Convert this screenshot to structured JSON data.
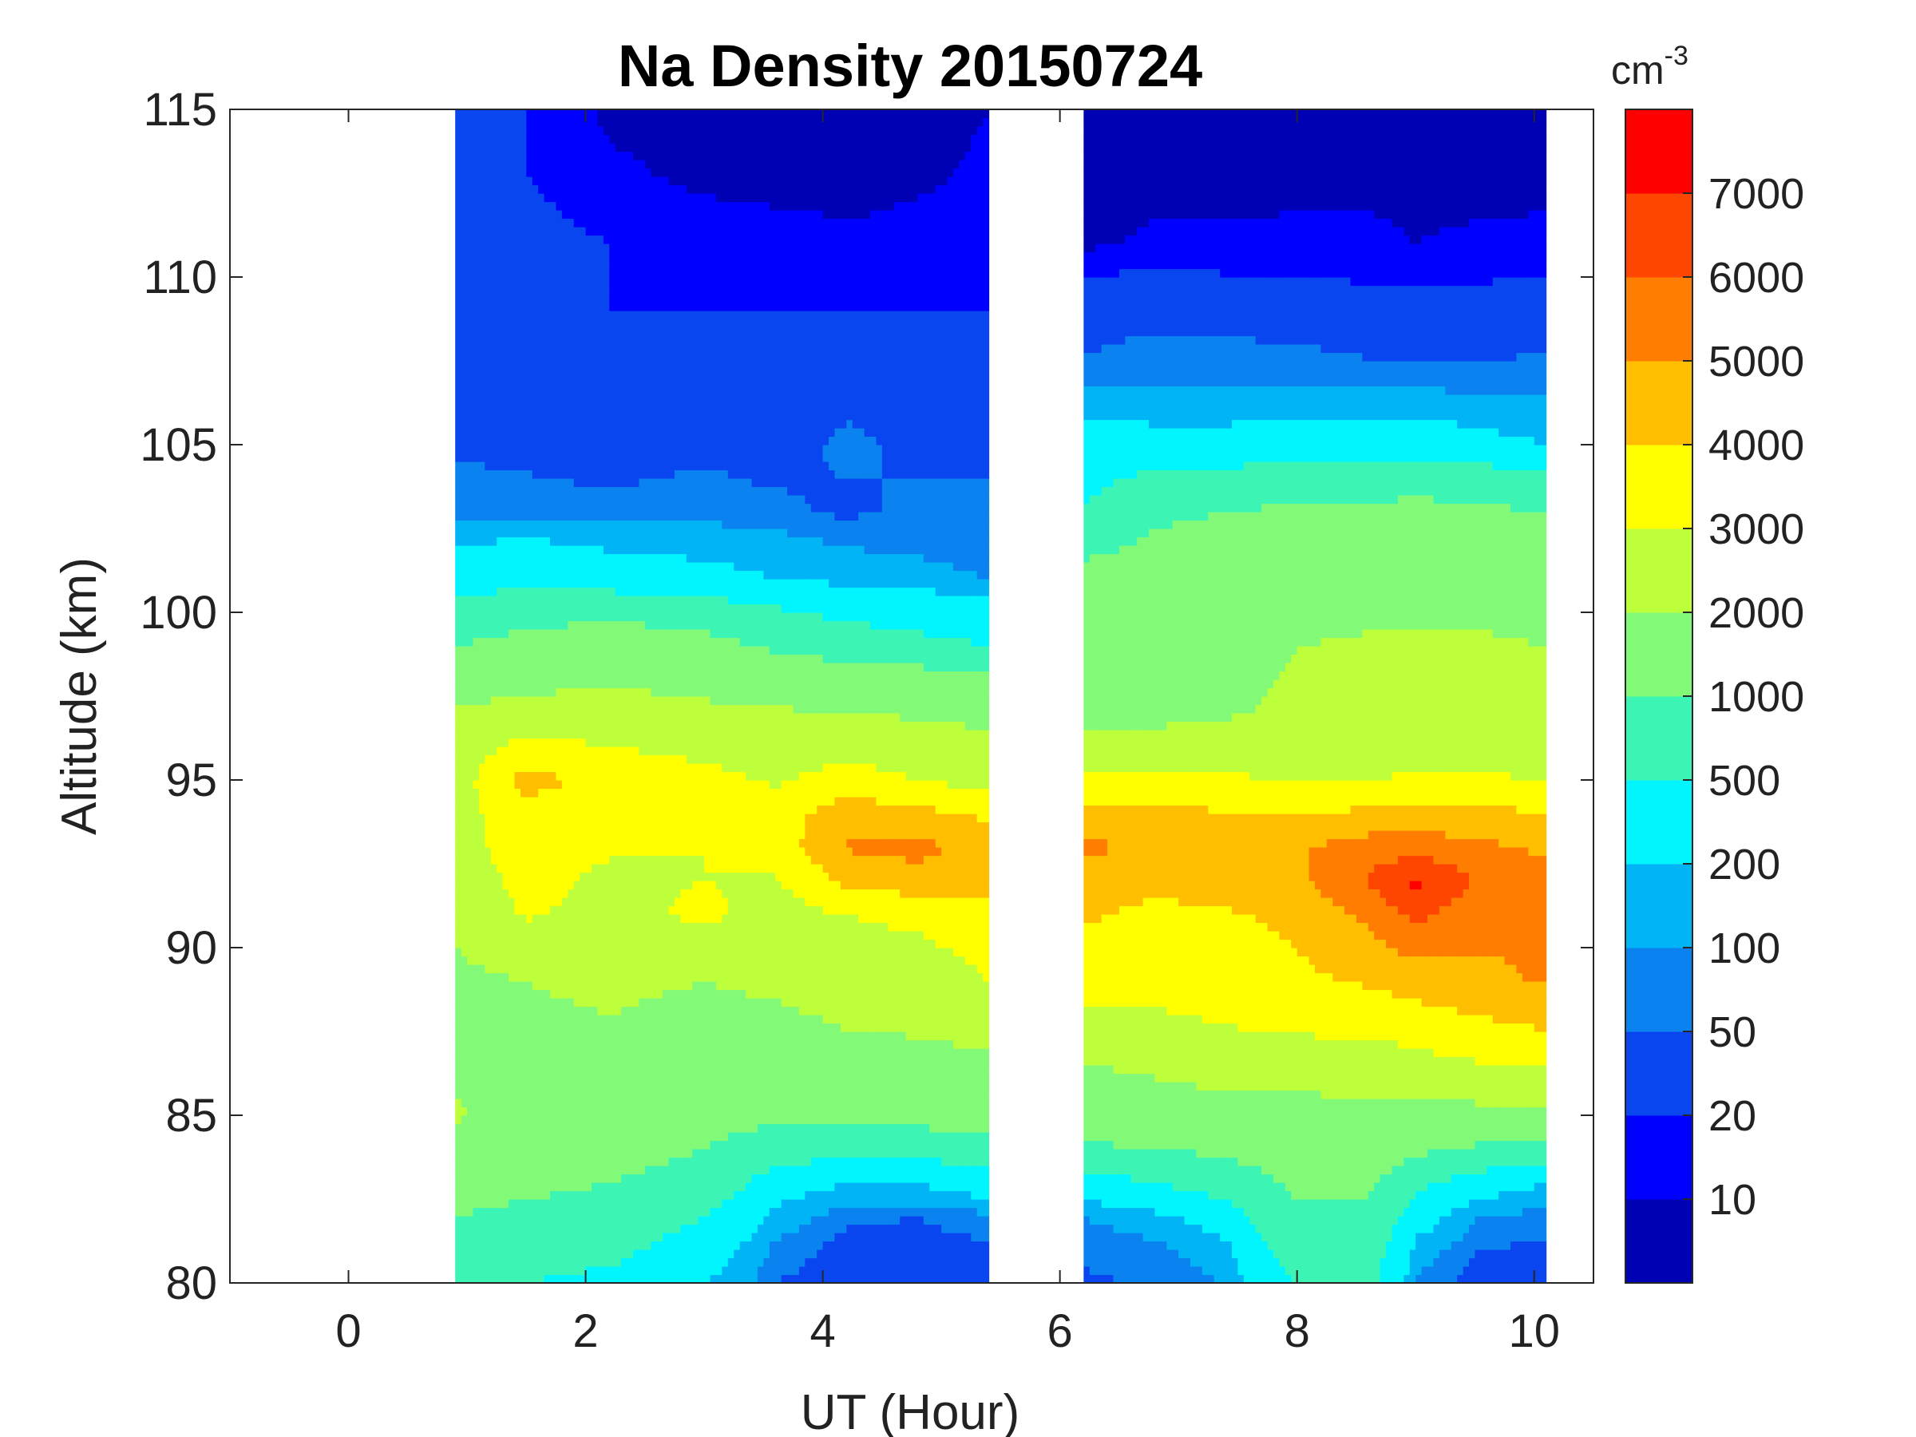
{
  "chart_data": {
    "type": "heatmap",
    "subtype": "filled-contour",
    "title": "Na Density 20150724",
    "xlabel": "UT (Hour)",
    "ylabel": "Altitude (km)",
    "xlim": [
      -1,
      10.5
    ],
    "ylim": [
      80,
      115
    ],
    "xticks": [
      "0",
      "2",
      "4",
      "6",
      "8",
      "10"
    ],
    "yticks": [
      "80",
      "85",
      "90",
      "95",
      "100",
      "105",
      "110",
      "115"
    ],
    "data_segments": [
      {
        "ut_start": 0.9,
        "ut_end": 5.4
      },
      {
        "ut_start": 6.2,
        "ut_end": 10.1
      }
    ],
    "colorbar": {
      "unit_base": "cm",
      "unit_exponent": "-3",
      "levels": [
        "10",
        "20",
        "50",
        "100",
        "200",
        "500",
        "1000",
        "2000",
        "3000",
        "4000",
        "5000",
        "6000",
        "7000"
      ],
      "level_values": [
        10,
        20,
        50,
        100,
        200,
        500,
        1000,
        2000,
        3000,
        4000,
        5000,
        6000,
        7000
      ],
      "colors": [
        "#0000b4",
        "#0000ff",
        "#0a46f0",
        "#0a82f0",
        "#00b4f5",
        "#00f5ff",
        "#3cf5b4",
        "#82fa78",
        "#beff3c",
        "#ffff00",
        "#ffbe00",
        "#ff7d00",
        "#ff4600",
        "#ff0000"
      ]
    },
    "profile_heights_km": [
      80,
      81,
      82,
      83,
      84,
      85,
      87,
      89,
      91,
      92,
      93,
      94,
      95,
      97,
      99,
      101,
      103,
      105,
      107,
      109,
      111,
      113,
      115
    ],
    "segments": [
      {
        "ut": [
          0.9,
          1.5,
          2.2,
          3.0,
          3.6,
          4.2,
          4.8,
          5.4
        ],
        "density": [
          [
            600,
            500,
            400,
            200,
            50,
            20,
            20,
            30
          ],
          [
            800,
            700,
            600,
            300,
            80,
            30,
            30,
            40
          ],
          [
            1000,
            900,
            800,
            500,
            150,
            60,
            50,
            80
          ],
          [
            1200,
            1100,
            1000,
            800,
            300,
            200,
            200,
            300
          ],
          [
            1500,
            1300,
            1200,
            1000,
            700,
            600,
            600,
            800
          ],
          [
            2100,
            1600,
            1400,
            1200,
            1100,
            1100,
            1200,
            1300
          ],
          [
            1700,
            1700,
            1800,
            1500,
            1500,
            1800,
            1900,
            2000
          ],
          [
            1800,
            2000,
            2200,
            2000,
            2200,
            2500,
            2500,
            3000
          ],
          [
            2200,
            3100,
            2700,
            3200,
            2600,
            3000,
            3200,
            3500
          ],
          [
            2400,
            3300,
            2800,
            3000,
            2900,
            4200,
            4600,
            4300
          ],
          [
            2600,
            3500,
            3100,
            3000,
            3400,
            5100,
            5300,
            4600
          ],
          [
            2600,
            3600,
            3300,
            3100,
            3500,
            4600,
            4300,
            3800
          ],
          [
            2500,
            4400,
            3600,
            3300,
            2900,
            3400,
            3000,
            2600
          ],
          [
            2100,
            2300,
            2400,
            2200,
            2100,
            2000,
            1900,
            1800
          ],
          [
            1000,
            1200,
            1400,
            1200,
            900,
            700,
            600,
            500
          ],
          [
            300,
            400,
            300,
            250,
            200,
            150,
            120,
            100
          ],
          [
            80,
            70,
            60,
            70,
            60,
            40,
            60,
            60
          ],
          [
            40,
            35,
            30,
            40,
            30,
            60,
            40,
            40
          ],
          [
            30,
            40,
            30,
            40,
            30,
            30,
            30,
            30
          ],
          [
            25,
            30,
            20,
            20,
            20,
            20,
            20,
            20
          ],
          [
            20,
            25,
            20,
            15,
            15,
            12,
            14,
            18
          ],
          [
            20,
            20,
            12,
            8,
            6,
            6,
            8,
            12
          ],
          [
            20,
            20,
            8,
            6,
            5,
            5,
            6,
            10
          ]
        ]
      },
      {
        "ut": [
          6.2,
          6.8,
          7.4,
          8.0,
          8.6,
          9.0,
          9.5,
          10.1
        ],
        "density": [
          [
            40,
            60,
            100,
            500,
            600,
            80,
            30,
            30
          ],
          [
            60,
            80,
            150,
            700,
            700,
            150,
            50,
            40
          ],
          [
            100,
            150,
            300,
            900,
            900,
            300,
            100,
            70
          ],
          [
            300,
            500,
            700,
            1100,
            1100,
            600,
            300,
            200
          ],
          [
            900,
            1000,
            1100,
            1300,
            1400,
            1100,
            900,
            700
          ],
          [
            1300,
            1500,
            1600,
            1600,
            1700,
            1600,
            1700,
            1700
          ],
          [
            2200,
            2400,
            2700,
            2800,
            2800,
            3000,
            3300,
            3600
          ],
          [
            3500,
            3400,
            3600,
            3800,
            4100,
            4400,
            4700,
            5100
          ],
          [
            4100,
            3800,
            3900,
            4200,
            5200,
            6300,
            5400,
            5200
          ],
          [
            4400,
            4200,
            4400,
            4800,
            6100,
            7200,
            6000,
            5300
          ],
          [
            5300,
            4700,
            4700,
            4900,
            5500,
            5600,
            5300,
            4800
          ],
          [
            4300,
            4200,
            4100,
            4000,
            4200,
            4300,
            4200,
            4100
          ],
          [
            3200,
            3200,
            3100,
            3000,
            3000,
            3100,
            3100,
            3000
          ],
          [
            1600,
            1700,
            1900,
            2200,
            2300,
            2300,
            2300,
            2200
          ],
          [
            1500,
            1600,
            1700,
            2000,
            2100,
            2100,
            2100,
            2000
          ],
          [
            1200,
            1300,
            1400,
            1500,
            1600,
            1700,
            1700,
            1600
          ],
          [
            500,
            900,
            1000,
            1100,
            1100,
            1200,
            1100,
            1000
          ],
          [
            300,
            250,
            250,
            300,
            300,
            300,
            250,
            200
          ],
          [
            60,
            80,
            80,
            70,
            60,
            60,
            60,
            60
          ],
          [
            30,
            35,
            30,
            30,
            25,
            25,
            25,
            30
          ],
          [
            8,
            12,
            12,
            12,
            12,
            10,
            12,
            12
          ],
          [
            6,
            6,
            6,
            8,
            8,
            7,
            6,
            8
          ],
          [
            5,
            5,
            5,
            5,
            5,
            5,
            5,
            5
          ]
        ]
      }
    ]
  }
}
